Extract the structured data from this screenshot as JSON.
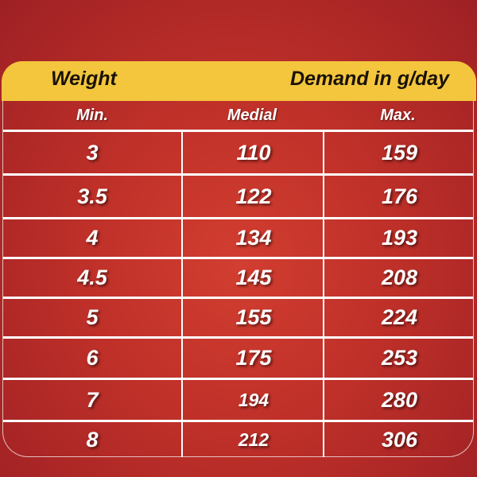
{
  "header": {
    "weight": "Weight",
    "demand": "Demand in g/day"
  },
  "subheader": {
    "min": "Min.",
    "medial": "Medial",
    "max": "Max."
  },
  "rows": [
    {
      "weight": "3",
      "medial": "110",
      "max": "159"
    },
    {
      "weight": "3.5",
      "medial": "122",
      "max": "176"
    },
    {
      "weight": "4",
      "medial": "134",
      "max": "193"
    },
    {
      "weight": "4.5",
      "medial": "145",
      "max": "208"
    },
    {
      "weight": "5",
      "medial": "155",
      "max": "224"
    },
    {
      "weight": "6",
      "medial": "175",
      "max": "253"
    },
    {
      "weight": "7",
      "medial": "194",
      "max": "280"
    },
    {
      "weight": "8",
      "medial": "212",
      "max": "306"
    }
  ],
  "colors": {
    "background": "#c0302a",
    "header": "#f3c63d",
    "text": "#ffffff"
  }
}
